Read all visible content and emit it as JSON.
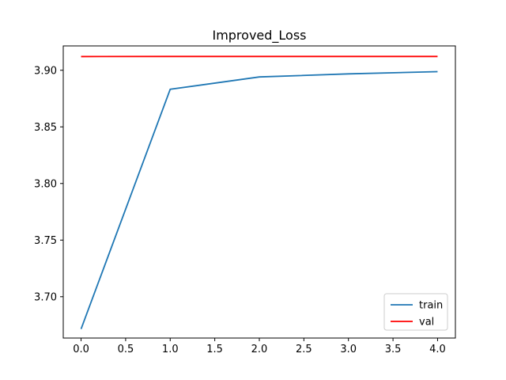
{
  "chart_data": {
    "type": "line",
    "title": "Improved_Loss",
    "xlabel": "",
    "ylabel": "",
    "xlim": [
      -0.2,
      4.2
    ],
    "ylim": [
      3.6635,
      3.9215
    ],
    "x_ticks": [
      0.0,
      0.5,
      1.0,
      1.5,
      2.0,
      2.5,
      3.0,
      3.5,
      4.0
    ],
    "x_tick_labels": [
      "0.0",
      "0.5",
      "1.0",
      "1.5",
      "2.0",
      "2.5",
      "3.0",
      "3.5",
      "4.0"
    ],
    "y_ticks": [
      3.7,
      3.75,
      3.8,
      3.85,
      3.9
    ],
    "y_tick_labels": [
      "3.70",
      "3.75",
      "3.80",
      "3.85",
      "3.90"
    ],
    "grid": false,
    "legend_position": "lower-right",
    "series": [
      {
        "name": "train",
        "color": "#1f77b4",
        "x": [
          0,
          1,
          2,
          3,
          4
        ],
        "y": [
          3.6715,
          3.8832,
          3.8941,
          3.8968,
          3.8988
        ]
      },
      {
        "name": "val",
        "color": "#ff0000",
        "x": [
          0,
          1,
          2,
          3,
          4
        ],
        "y": [
          3.9121,
          3.9122,
          3.9122,
          3.9122,
          3.9122
        ]
      }
    ]
  }
}
